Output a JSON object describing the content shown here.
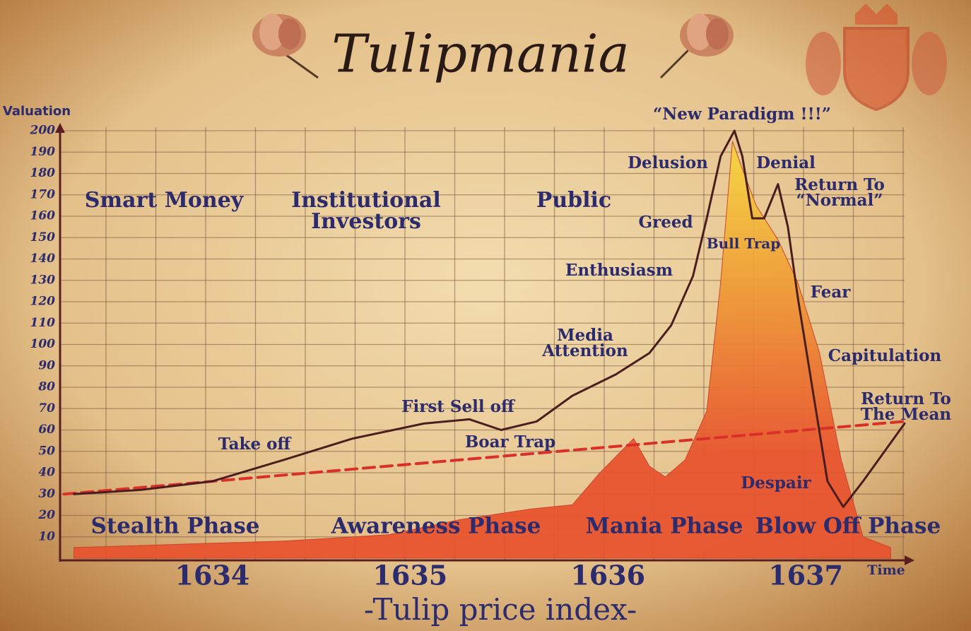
{
  "chart_data": {
    "type": "line",
    "title": "Tulipmania",
    "subtitle": "-Tulip price index-",
    "y_label": "Valuation",
    "x_label": "Time",
    "xlim": [
      1633.23,
      1637.5
    ],
    "xticks": [
      1634,
      1635,
      1636,
      1637
    ],
    "ylim": [
      0,
      200
    ],
    "yticks": [
      10,
      20,
      30,
      40,
      50,
      60,
      70,
      80,
      90,
      100,
      110,
      120,
      130,
      140,
      150,
      160,
      170,
      180,
      190,
      200
    ],
    "grid": true,
    "series": [
      {
        "type": "area",
        "color": "#e8552f",
        "top_color": "#f5d040",
        "x": [
          1633.3,
          1634.0,
          1634.36,
          1634.89,
          1635.25,
          1635.61,
          1635.82,
          1635.96,
          1636.13,
          1636.21,
          1636.29,
          1636.39,
          1636.5,
          1636.57,
          1636.63,
          1636.68,
          1636.75,
          1636.86,
          1636.96,
          1637.07,
          1637.18,
          1637.29,
          1637.43
        ],
        "values": [
          5,
          7,
          8,
          11,
          18,
          23,
          25,
          40,
          56,
          43,
          38,
          46,
          69,
          129,
          195,
          182,
          165,
          149,
          129,
          96,
          46,
          10,
          5
        ]
      },
      {
        "type": "line",
        "color": "#d9302a",
        "dashed": true,
        "x": [
          1633.25,
          1637.5
        ],
        "values": [
          30,
          64
        ]
      },
      {
        "type": "line",
        "color": "#4a1e1e",
        "dashed": false,
        "x": [
          1633.3,
          1633.64,
          1634.0,
          1634.36,
          1634.71,
          1635.07,
          1635.3,
          1635.46,
          1635.64,
          1635.82,
          1636.04,
          1636.21,
          1636.32,
          1636.43,
          1636.5,
          1636.57,
          1636.64,
          1636.68,
          1636.73,
          1636.79,
          1636.86,
          1636.91,
          1636.96,
          1637.04,
          1637.11,
          1637.19,
          1637.29,
          1637.5
        ],
        "values": [
          30,
          32,
          36,
          46,
          56,
          63,
          65,
          60,
          64,
          76,
          86,
          96,
          109,
          132,
          159,
          188,
          200,
          188,
          159,
          159,
          175,
          155,
          122,
          76,
          36,
          24,
          36,
          63
        ]
      }
    ],
    "annotations": [
      [
        "Smart Money"
      ],
      [
        "Institutional",
        "Investors"
      ],
      [
        "Public"
      ],
      [
        "Stealth Phase"
      ],
      [
        "Awareness Phase"
      ],
      [
        "Mania Phase"
      ],
      [
        "Blow Off Phase"
      ],
      [
        "“New Paradigm !!!”"
      ],
      [
        "Delusion"
      ],
      [
        "Denial"
      ],
      [
        "Return To",
        "“Normal”"
      ],
      [
        "Greed"
      ],
      [
        "Bull Trap"
      ],
      [
        "Enthusiasm"
      ],
      [
        "Fear"
      ],
      [
        "Media",
        "Attention"
      ],
      [
        "Capitulation"
      ],
      [
        "Return To",
        "The Mean"
      ],
      [
        "First Sell off"
      ],
      [
        "Take off"
      ],
      [
        "Boar Trap"
      ],
      [
        "Despair"
      ]
    ]
  }
}
